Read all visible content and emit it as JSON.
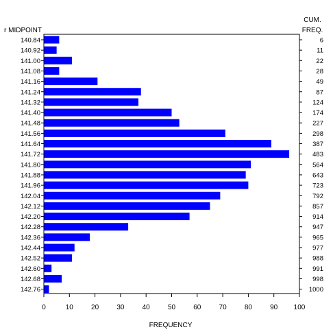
{
  "chart_data": {
    "type": "bar",
    "orientation": "horizontal",
    "title": "",
    "category_header": "r MIDPOINT",
    "cum_header": [
      "CUM.",
      "FREQ."
    ],
    "xlabel": "FREQUENCY",
    "xlim": [
      0,
      100
    ],
    "xticks": [
      0,
      10,
      20,
      30,
      40,
      50,
      60,
      70,
      80,
      90,
      100
    ],
    "bar_color": "#0000ff",
    "categories": [
      "140.84",
      "140.92",
      "141.00",
      "141.08",
      "141.16",
      "141.24",
      "141.32",
      "141.40",
      "141.48",
      "141.56",
      "141.64",
      "141.72",
      "141.80",
      "141.88",
      "141.96",
      "142.04",
      "142.12",
      "142.20",
      "142.28",
      "142.36",
      "142.44",
      "142.52",
      "142.60",
      "142.68",
      "142.76"
    ],
    "values": [
      6,
      5,
      11,
      6,
      21,
      38,
      37,
      50,
      53,
      71,
      89,
      96,
      81,
      79,
      80,
      69,
      65,
      57,
      33,
      18,
      12,
      11,
      3,
      7,
      2
    ],
    "cum_freq": [
      6,
      11,
      22,
      28,
      49,
      87,
      124,
      174,
      227,
      298,
      387,
      483,
      564,
      643,
      723,
      792,
      857,
      914,
      947,
      965,
      977,
      988,
      991,
      998,
      1000
    ]
  }
}
